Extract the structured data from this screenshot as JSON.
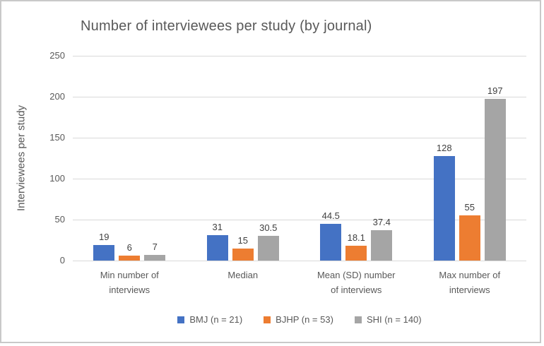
{
  "chart_data": {
    "type": "bar",
    "title": "Number of interviewees per study (by journal)",
    "xlabel": "",
    "ylabel": "Interviewees per study",
    "ylim": [
      0,
      250
    ],
    "yticks": [
      0,
      50,
      100,
      150,
      200,
      250
    ],
    "grid": true,
    "legend_position": "bottom",
    "categories": [
      "Min number of interviews",
      "Median",
      "Mean (SD) number of interviews",
      "Max number of interviews"
    ],
    "series": [
      {
        "name": "BMJ (n = 21)",
        "color": "#4472C4",
        "values": [
          19,
          31,
          44.5,
          128
        ]
      },
      {
        "name": "BJHP (n = 53)",
        "color": "#ED7D31",
        "values": [
          6,
          15,
          18.1,
          55
        ]
      },
      {
        "name": "SHI (n = 140)",
        "color": "#A5A5A5",
        "values": [
          7,
          30.5,
          37.4,
          197
        ]
      }
    ]
  },
  "style_colors": {
    "gridline": "#d9d9d9",
    "axis_text": "#595959",
    "data_label_text": "#404040",
    "frame_border": "#c9c9c9"
  }
}
